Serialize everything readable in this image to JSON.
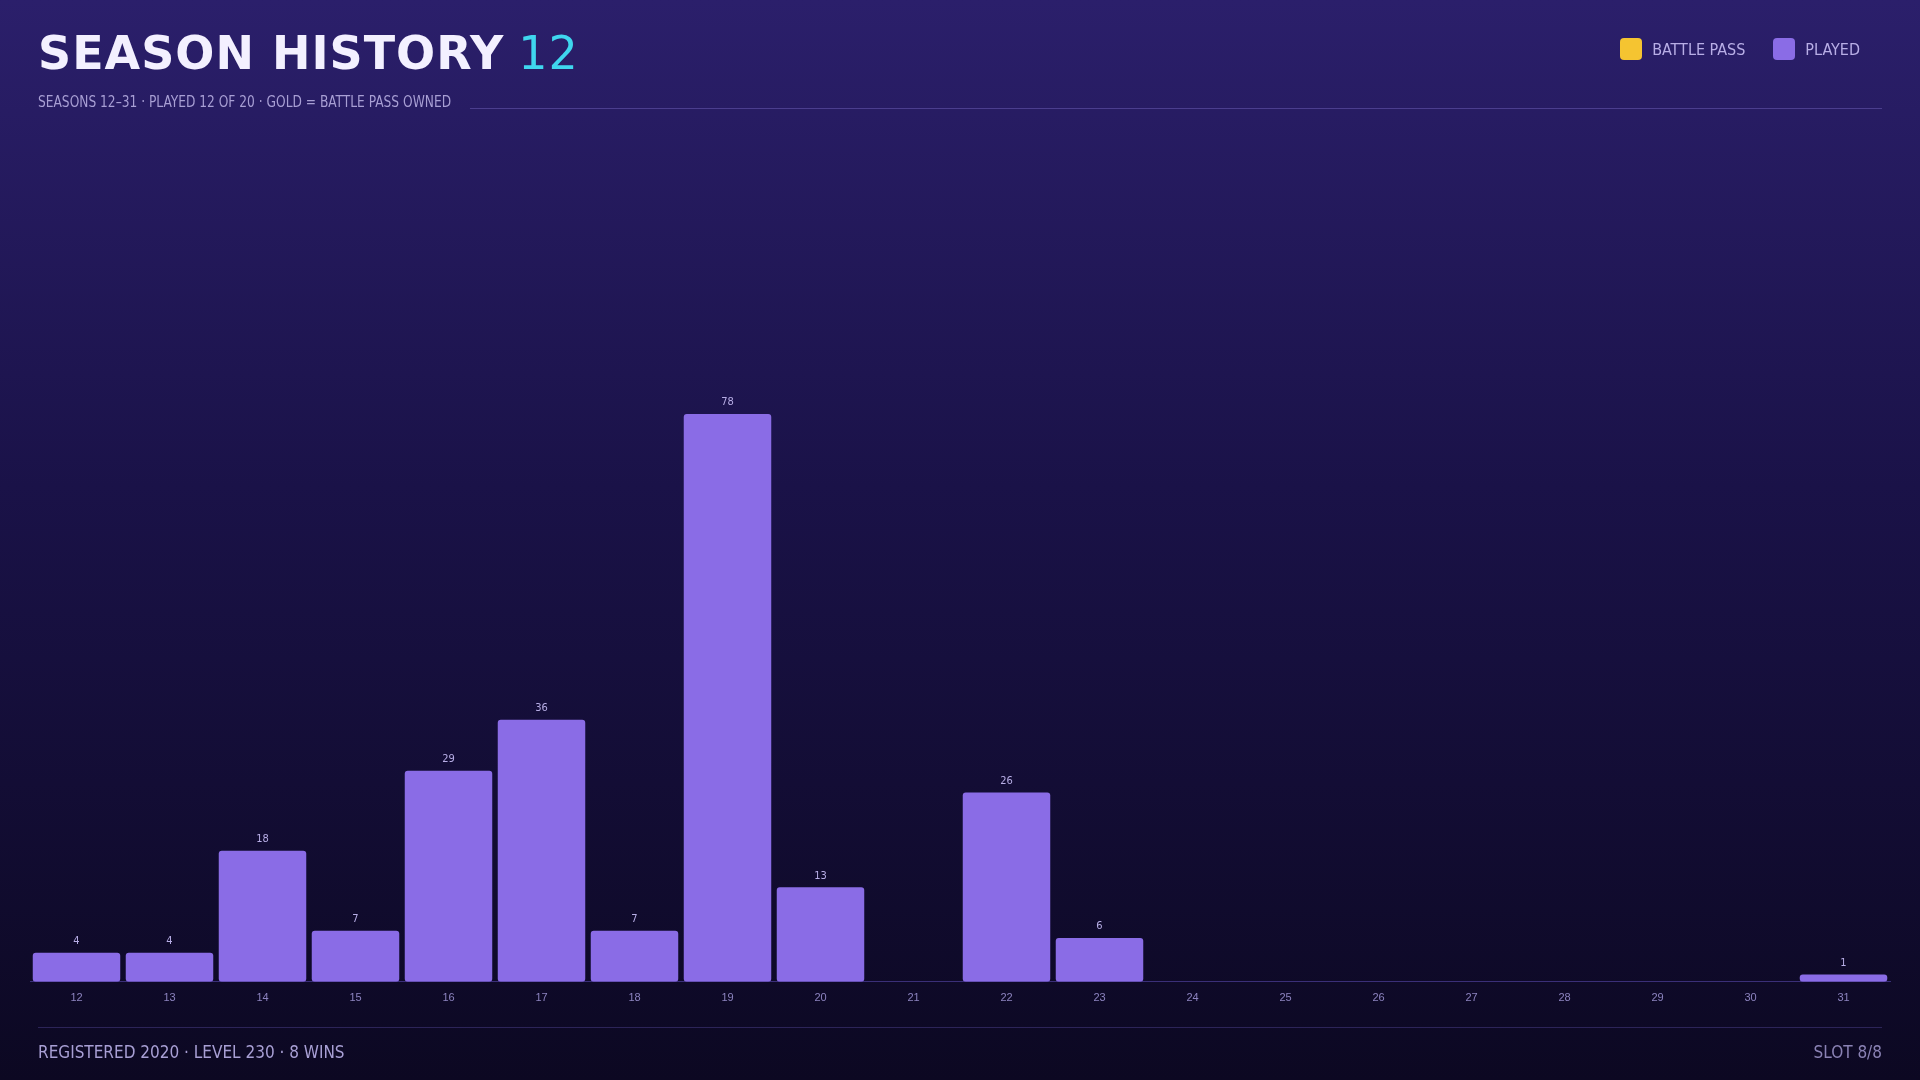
{
  "chart_data": {
    "type": "bar",
    "title": "SEASON HISTORY",
    "subtitle": "SEASONS 12–31 · PLAYED 12 OF 20 · GOLD = BATTLE PASS OWNED",
    "categories": [
      "12",
      "13",
      "14",
      "15",
      "16",
      "17",
      "18",
      "19",
      "20",
      "21",
      "22",
      "23",
      "24",
      "25",
      "26",
      "27",
      "28",
      "29",
      "30",
      "31"
    ],
    "series": [
      {
        "name": "BATTLE PASS",
        "color": "#f5c431",
        "values": [
          null,
          null,
          null,
          null,
          null,
          null,
          null,
          null,
          null,
          null,
          null,
          null,
          null,
          null,
          null,
          null,
          null,
          null,
          null,
          null
        ]
      },
      {
        "name": "PLAYED",
        "color": "#8a6ce6",
        "values": [
          4,
          4,
          18,
          7,
          29,
          36,
          7,
          78,
          13,
          null,
          26,
          6,
          null,
          null,
          null,
          null,
          null,
          null,
          null,
          1
        ]
      }
    ],
    "stacked": true,
    "data_labels": true,
    "grid": false,
    "legend": "top right",
    "tick_labels": "x",
    "annotations": [
      "12",
      "REGISTERED 2020 · LEVEL 230 · 8 WINS",
      "SLOT 8/8"
    ]
  }
}
